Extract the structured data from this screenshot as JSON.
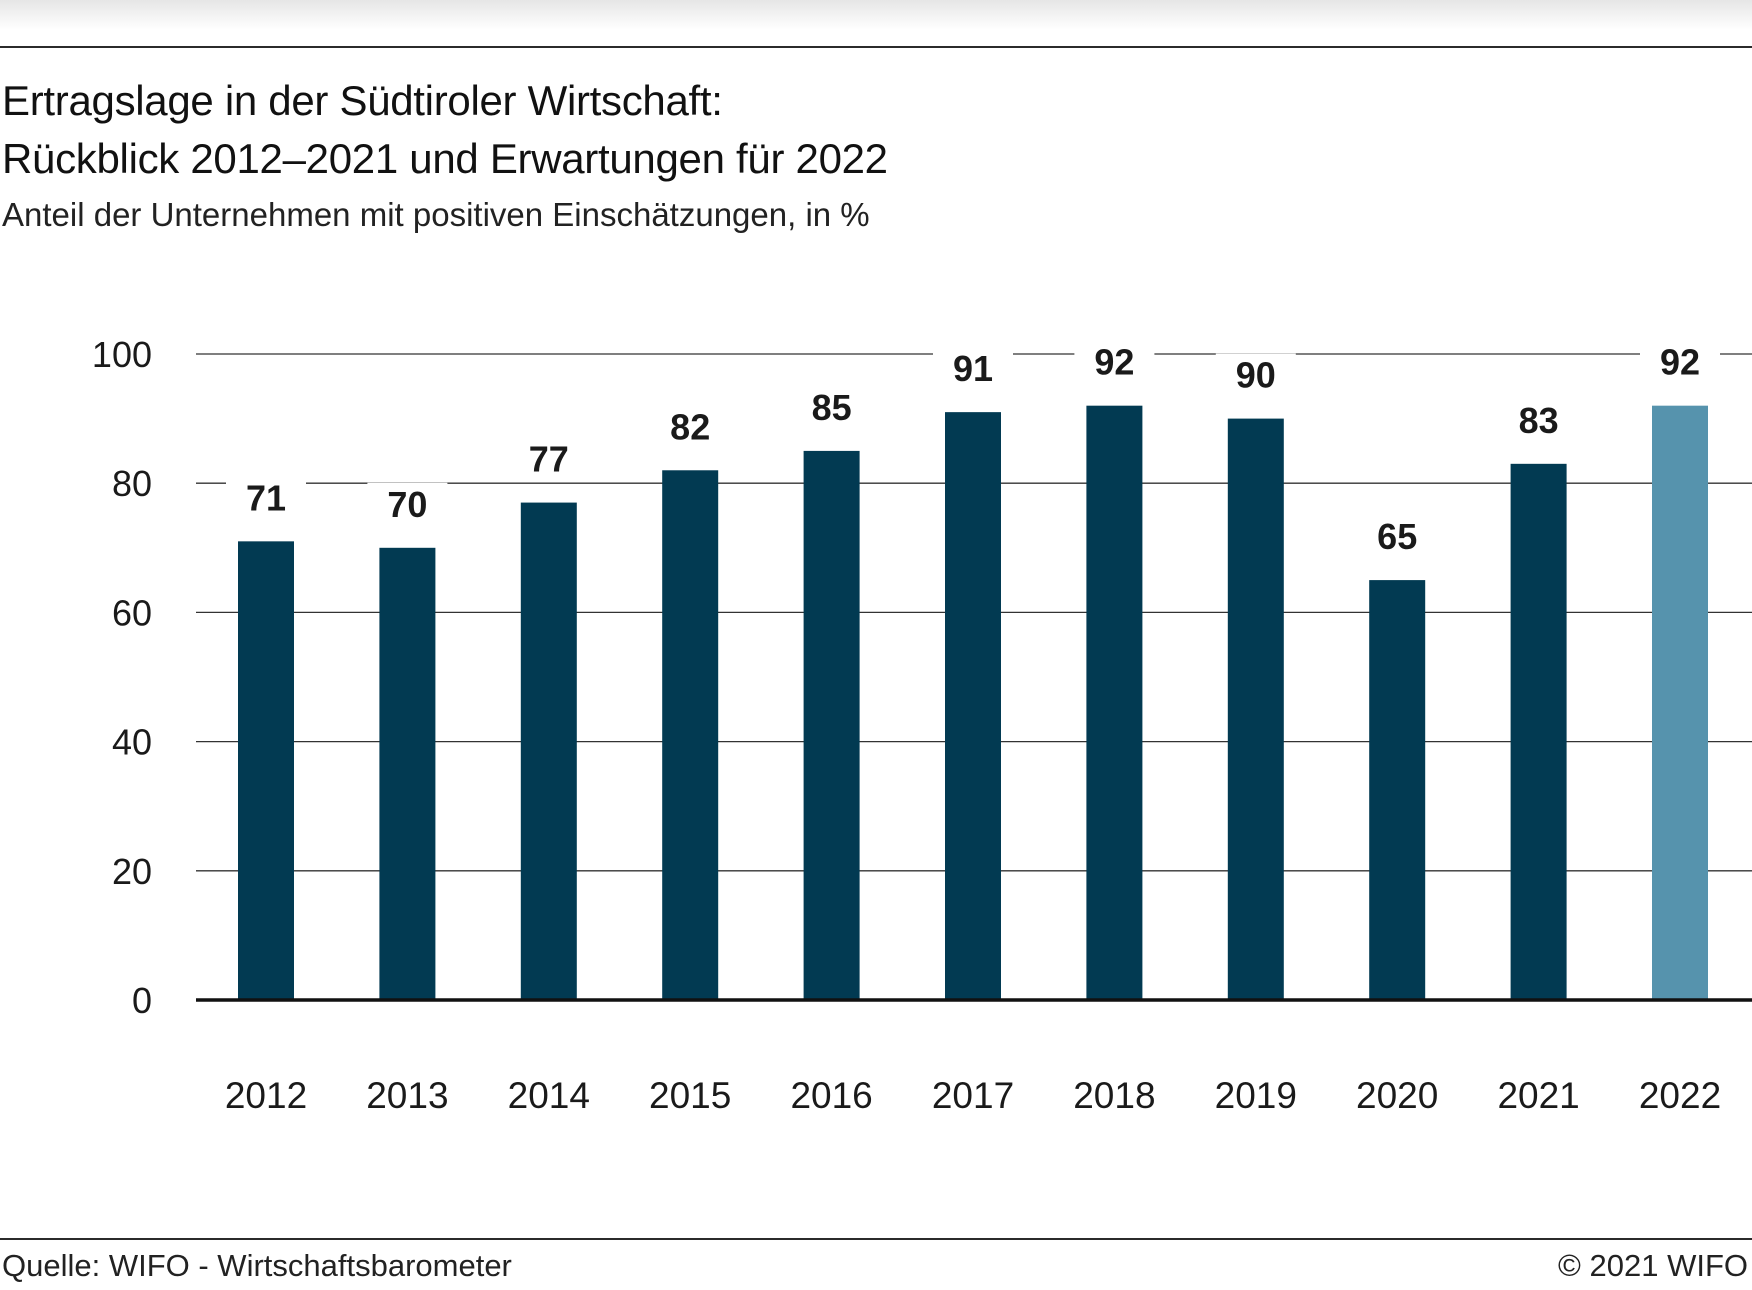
{
  "title_lines": [
    "Ertragslage in der Südtiroler Wirtschaft:",
    "Rückblick 2012–2021 und Erwartungen für 2022"
  ],
  "subtitle": "Anteil der Unternehmen mit positiven Einschätzungen, in %",
  "source": "Quelle: WIFO - Wirtschaftsbarometer",
  "copyright": "© 2021 WIFO",
  "colors": {
    "bar": "#023a52",
    "bar_forecast": "#5693ad",
    "grid": "#333333",
    "text": "#1a1a1a"
  },
  "chart_data": {
    "type": "bar",
    "title": "Ertragslage in der Südtiroler Wirtschaft: Rückblick 2012–2021 und Erwartungen für 2022",
    "subtitle": "Anteil der Unternehmen mit positiven Einschätzungen, in %",
    "categories": [
      "2012",
      "2013",
      "2014",
      "2015",
      "2016",
      "2017",
      "2018",
      "2019",
      "2020",
      "2021",
      "2022"
    ],
    "values": [
      71,
      70,
      77,
      82,
      85,
      91,
      92,
      90,
      65,
      83,
      92
    ],
    "highlighted_categories": [
      "2022"
    ],
    "ylim": [
      0,
      100
    ],
    "yticks": [
      0,
      20,
      40,
      60,
      80,
      100
    ],
    "ytick_labels": [
      "0",
      "20",
      "40",
      "60",
      "80",
      "100"
    ],
    "xlabel": "",
    "ylabel": "",
    "grid": true,
    "legend": "none",
    "data_labels": true
  }
}
